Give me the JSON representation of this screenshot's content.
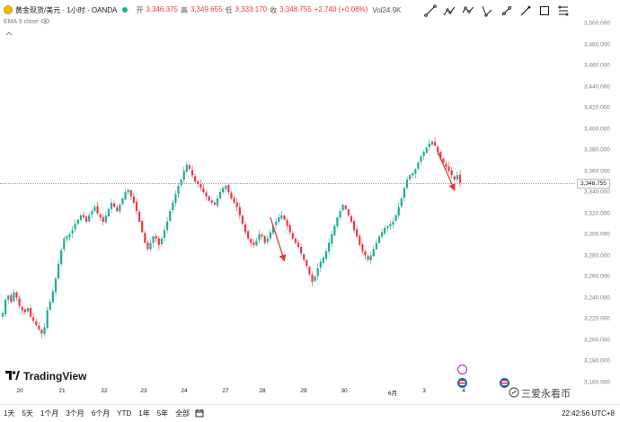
{
  "header": {
    "title": "黄金现货/美元 · 1小时 · OANDA",
    "ohlc": [
      {
        "label": "开",
        "value": "3,346.375"
      },
      {
        "label": "高",
        "value": "3,349.655"
      },
      {
        "label": "低",
        "value": "3,333.170"
      },
      {
        "label": "收",
        "value": "3,348.755"
      }
    ],
    "change": "+2.740 (+0.08%)",
    "volume": "Vol24.9K"
  },
  "indicator": {
    "label": "EMA 9 close"
  },
  "price_axis": {
    "ticks": [
      "3,500.000",
      "3,480.000",
      "3,460.000",
      "3,440.000",
      "3,420.000",
      "3,400.000",
      "3,380.000",
      "3,360.000",
      "3,340.000",
      "3,320.000",
      "3,300.000",
      "3,280.000",
      "3,260.000",
      "3,240.000",
      "3,220.000",
      "3,200.000",
      "3,180.000",
      "3,160.000"
    ],
    "last_price": "3,348.755"
  },
  "time_axis": {
    "labels": [
      "20",
      "21",
      "22",
      "23",
      "24",
      "27",
      "28",
      "29",
      "30",
      "6月",
      "3",
      "4"
    ]
  },
  "branding": {
    "logo_text": "TradingView",
    "watermark": "三爱永看币"
  },
  "bottom_bar": {
    "ranges": [
      "1天",
      "5天",
      "1个月",
      "3个月",
      "6个月",
      "YTD",
      "1年",
      "5年",
      "全部"
    ],
    "clock": "22:42:56 UTC+8"
  },
  "toolbar": {
    "icons": [
      "trend-line-icon",
      "ray-icon",
      "polyline-icon",
      "path-icon",
      "extended-line-icon",
      "brush-icon",
      "rectangle-icon",
      "fib-icon"
    ]
  },
  "colors": {
    "up": "#22ab94",
    "down": "#f23645",
    "arrow": "#e53935"
  },
  "chart_data": {
    "type": "candlestick",
    "ylim": [
      3160,
      3500
    ],
    "x_labels": [
      "20",
      "21",
      "22",
      "23",
      "24",
      "27",
      "28",
      "29",
      "30",
      "6月",
      "3",
      "4"
    ],
    "series": [
      {
        "close": [
          3225,
          3238,
          3242,
          3236,
          3245,
          3240,
          3232,
          3228,
          3226,
          3230,
          3222,
          3218,
          3214,
          3210,
          3206,
          3212,
          3228,
          3236,
          3246,
          3258,
          3272,
          3285,
          3296,
          3298,
          3300,
          3304,
          3310,
          3314,
          3318,
          3316,
          3312,
          3318,
          3322,
          3326,
          3320,
          3316,
          3312,
          3318,
          3324,
          3330,
          3326,
          3322,
          3328,
          3334,
          3340,
          3342,
          3336,
          3330,
          3322,
          3312,
          3302,
          3292,
          3286,
          3292,
          3298,
          3296,
          3290,
          3296,
          3304,
          3312,
          3322,
          3330,
          3338,
          3346,
          3352,
          3360,
          3366,
          3362,
          3356,
          3350,
          3348,
          3344,
          3340,
          3336,
          3332,
          3330,
          3328,
          3334,
          3340,
          3344,
          3346,
          3340,
          3334,
          3330,
          3326,
          3318,
          3310,
          3302,
          3296,
          3292,
          3290,
          3294,
          3300,
          3298,
          3292,
          3296,
          3302,
          3308,
          3312,
          3316,
          3318,
          3314,
          3308,
          3302,
          3296,
          3292,
          3288,
          3282,
          3276,
          3270,
          3262,
          3255,
          3260,
          3268,
          3274,
          3278,
          3284,
          3292,
          3300,
          3308,
          3316,
          3322,
          3328,
          3324,
          3318,
          3312,
          3304,
          3298,
          3290,
          3284,
          3280,
          3276,
          3280,
          3286,
          3292,
          3298,
          3302,
          3306,
          3308,
          3310,
          3312,
          3318,
          3326,
          3334,
          3344,
          3352,
          3356,
          3358,
          3362,
          3368,
          3374,
          3378,
          3382,
          3386,
          3388,
          3384,
          3378,
          3372,
          3368,
          3364,
          3360,
          3356,
          3352,
          3356,
          3348.755
        ]
      }
    ],
    "annotations": [
      {
        "type": "arrow",
        "from": [
          96,
          3316
        ],
        "to": [
          101,
          3275
        ]
      },
      {
        "type": "arrow",
        "from": [
          156,
          3378
        ],
        "to": [
          162,
          3342
        ]
      }
    ]
  }
}
